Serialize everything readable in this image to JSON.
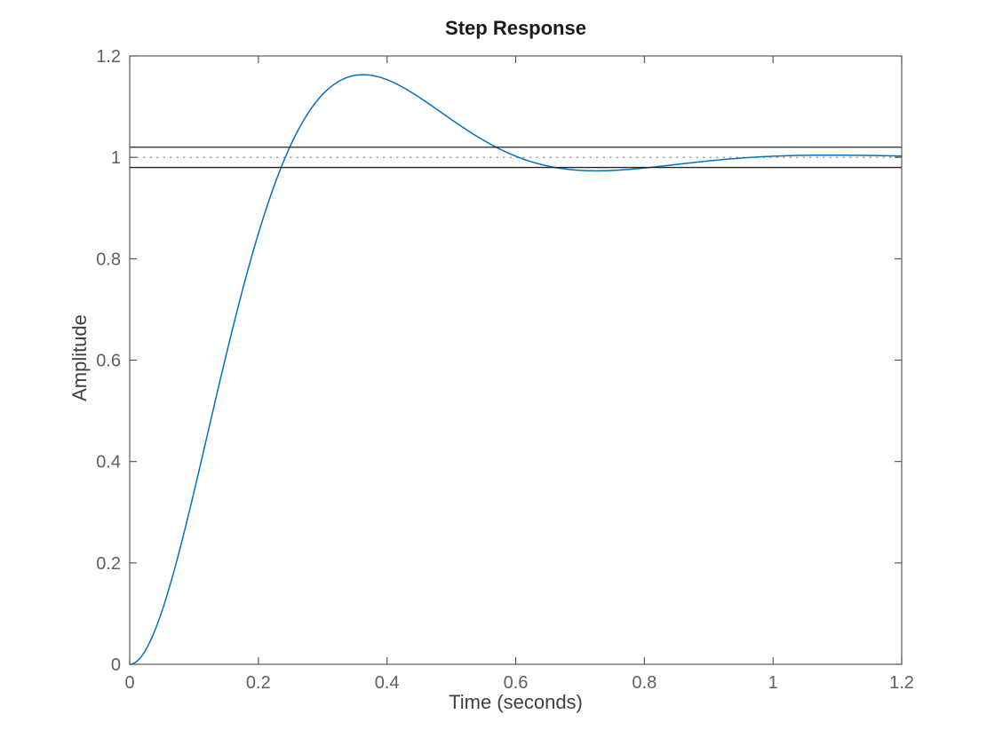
{
  "chart_data": {
    "type": "line",
    "title": "Step Response",
    "xlabel": "Time (seconds)",
    "ylabel": "Amplitude",
    "xlim": [
      0,
      1.2
    ],
    "ylim": [
      0,
      1.2
    ],
    "grid": false,
    "box": true,
    "legend": "none",
    "xticks": {
      "values": [
        0,
        0.2,
        0.4,
        0.6,
        0.8,
        1,
        1.2
      ],
      "labels": [
        "0",
        "0.2",
        "0.4",
        "0.6",
        "0.8",
        "1",
        "1.2"
      ]
    },
    "yticks": {
      "values": [
        0,
        0.2,
        0.4,
        0.6,
        0.8,
        1,
        1.2
      ],
      "labels": [
        "0",
        "0.2",
        "0.4",
        "0.6",
        "0.8",
        "1",
        "1.2"
      ]
    },
    "series": [
      {
        "name": "step-response",
        "color": "#0072BD",
        "line_width": 1.5,
        "model": {
          "type": "second-order-step",
          "wn": 10,
          "zeta": 0.5,
          "gain": 1,
          "t_end": 1.2
        },
        "points_sample": [
          [
            0,
            0
          ],
          [
            0.05,
            0.1044
          ],
          [
            0.1,
            0.3403
          ],
          [
            0.15,
            0.6105
          ],
          [
            0.2,
            0.8494
          ],
          [
            0.25,
            1.0236
          ],
          [
            0.3,
            1.1244
          ],
          [
            0.35,
            1.1617
          ],
          [
            0.4,
            1.1531
          ],
          [
            0.45,
            1.1184
          ],
          [
            0.5,
            1.0746
          ],
          [
            0.55,
            1.0336
          ],
          [
            0.6,
            1.0023
          ],
          [
            0.65,
            0.9829
          ],
          [
            0.7,
            0.9744
          ],
          [
            0.75,
            0.9742
          ],
          [
            0.8,
            0.979
          ],
          [
            0.85,
            0.986
          ],
          [
            0.9,
            0.9929
          ],
          [
            0.95,
            0.9985
          ],
          [
            1,
            1.0022
          ],
          [
            1.05,
            1.004
          ],
          [
            1.1,
            1.0043
          ],
          [
            1.15,
            1.0036
          ],
          [
            1.2,
            1.0026
          ]
        ]
      }
    ],
    "reference_lines": [
      {
        "name": "steady-state",
        "y": 1.0,
        "style": "dotted",
        "color": "#8a8a8a",
        "width": 1.1
      },
      {
        "name": "upper-settling-bound",
        "y": 1.02,
        "style": "solid",
        "color": "#222222",
        "width": 1.3
      },
      {
        "name": "lower-settling-bound",
        "y": 0.98,
        "style": "solid",
        "color": "#222222",
        "width": 1.3
      }
    ],
    "key_features": {
      "peak_time_s": 0.363,
      "peak_amplitude": 1.16,
      "overshoot_percent": 16.3,
      "steady_state_value": 1.0,
      "settling_band_percent": 2
    },
    "palette": {
      "curve": "#0072BD",
      "axis": "#4d4d4d",
      "tick_label": "#5f5f5f",
      "axis_label": "#404040",
      "title": "#1a1a1a",
      "background": "#ffffff"
    }
  }
}
